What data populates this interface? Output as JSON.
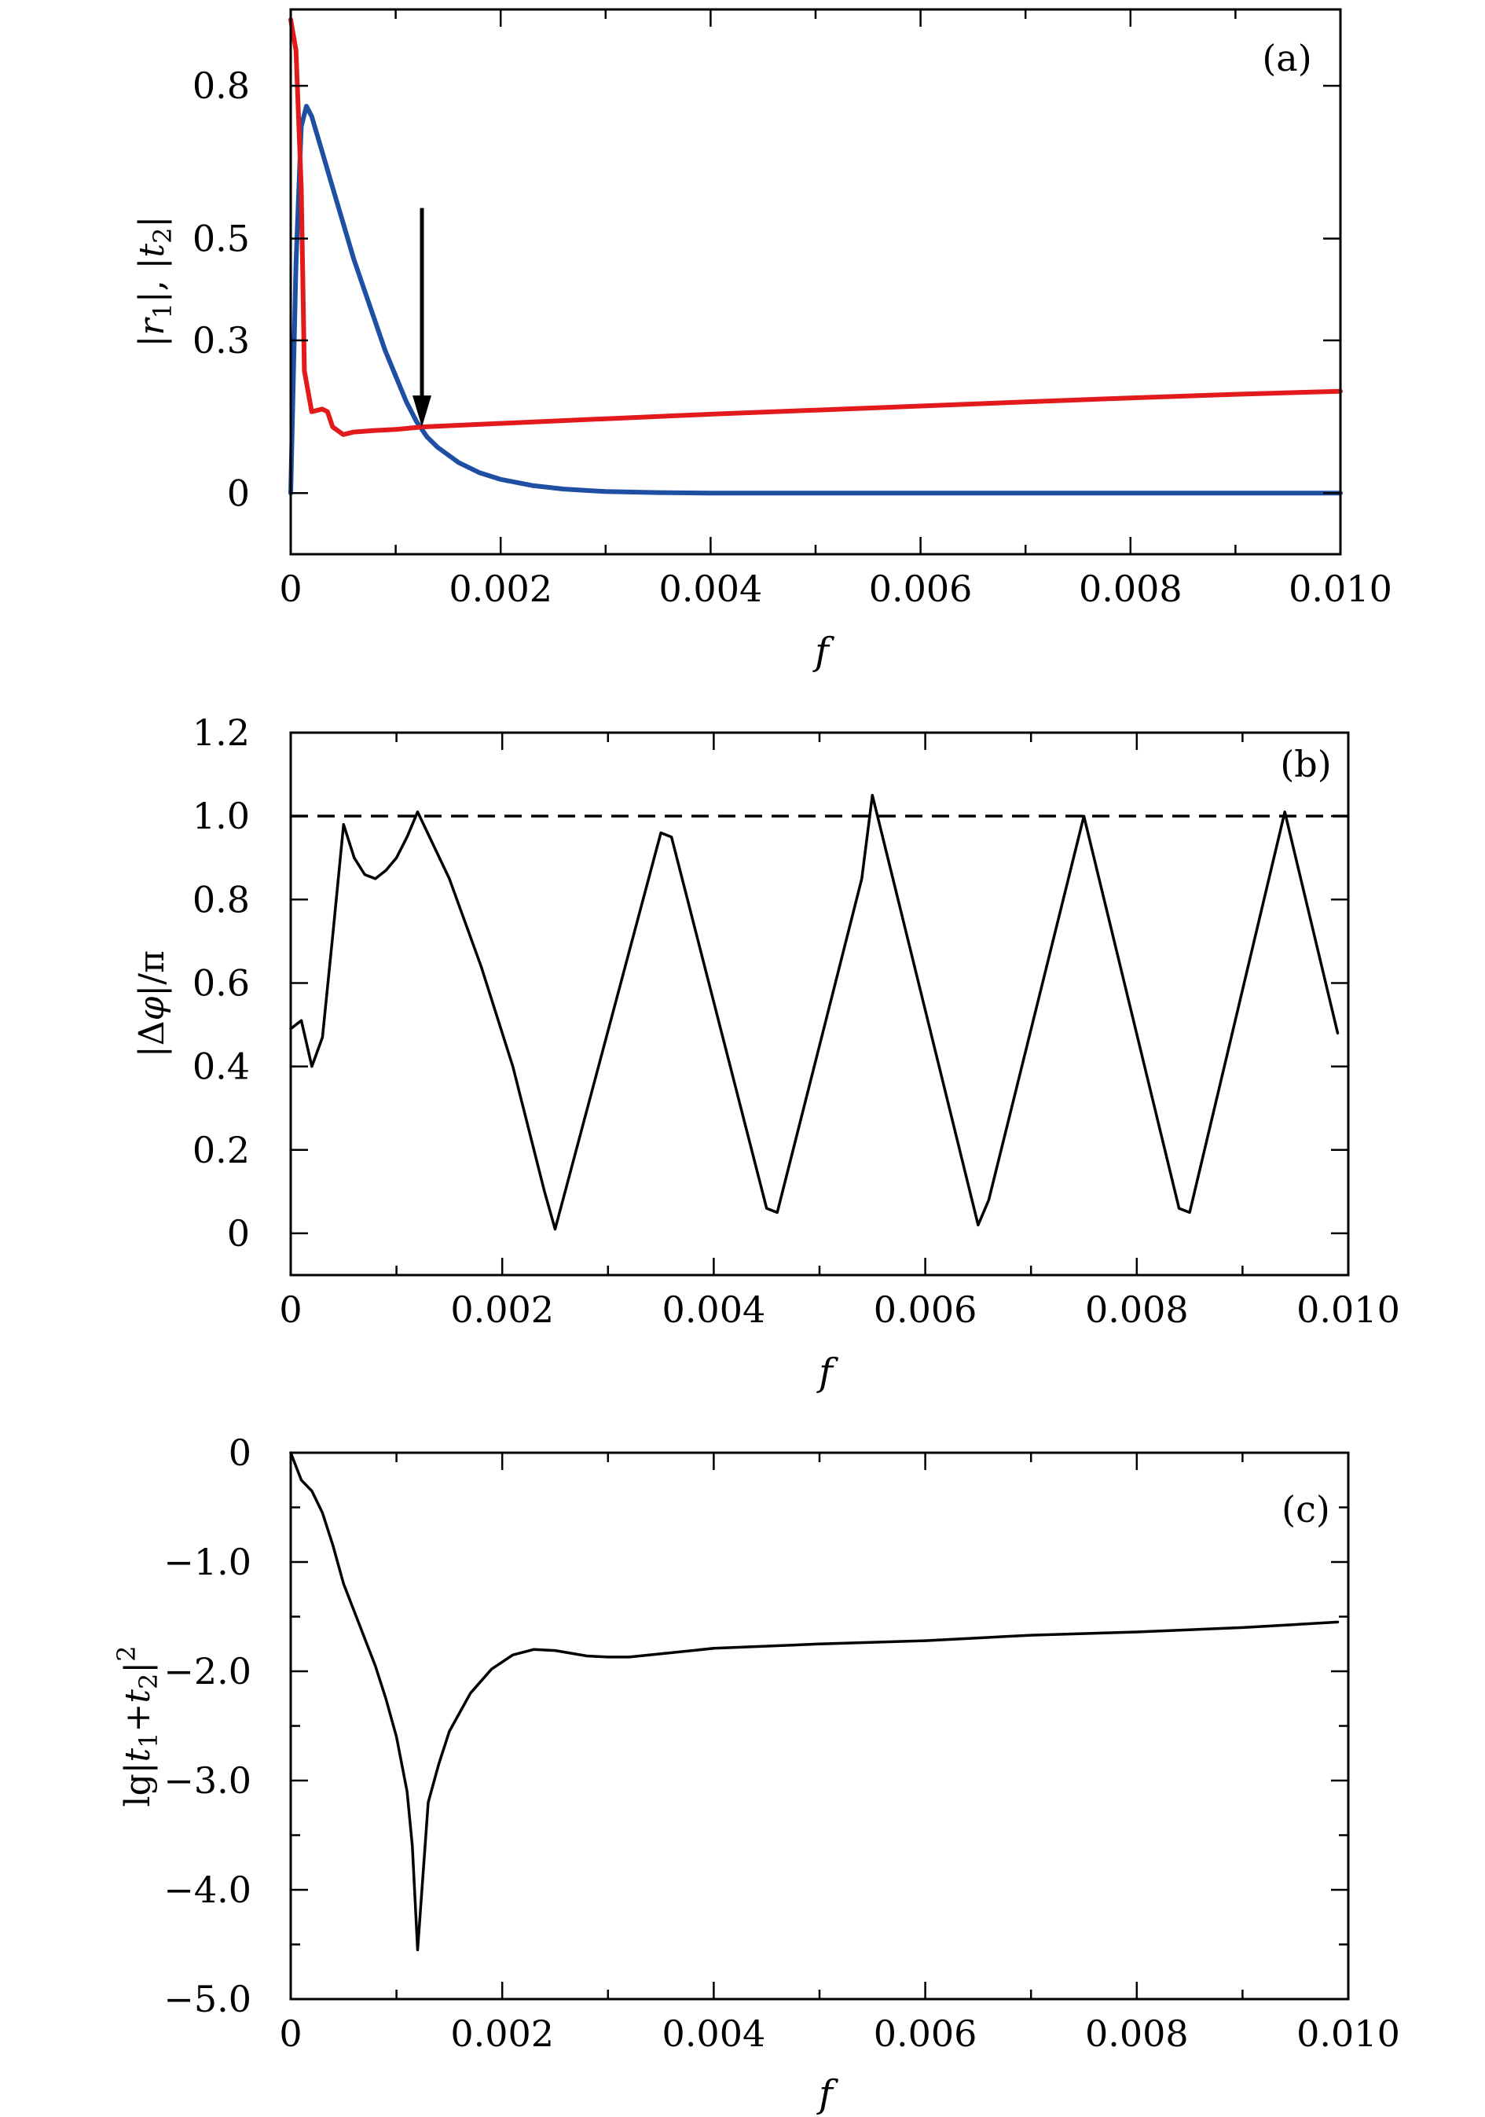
{
  "chart_data": [
    {
      "type": "line",
      "panel_label": "(a)",
      "xlabel": "f",
      "ylabel": "|r1|, |t2|",
      "xlim": [
        0,
        0.01
      ],
      "ylim": [
        -0.12,
        0.95
      ],
      "x_ticks": [
        0,
        0.002,
        0.004,
        0.006,
        0.008,
        0.01
      ],
      "x_tick_labels": [
        "0",
        "0.002",
        "0.004",
        "0.006",
        "0.008",
        "0.010"
      ],
      "y_ticks": [
        0,
        0.3,
        0.5,
        0.8
      ],
      "y_tick_labels": [
        "0",
        "0.3",
        "0.5",
        "0.8"
      ],
      "annotation": {
        "type": "arrow",
        "x": 0.00125,
        "y_from": 0.56,
        "y_to": 0.13
      },
      "series": [
        {
          "color": "#1f4fa3",
          "points": [
            [
              0,
              0
            ],
            [
              5e-05,
              0.45
            ],
            [
              0.0001,
              0.72
            ],
            [
              0.00015,
              0.76
            ],
            [
              0.0002,
              0.74
            ],
            [
              0.0003,
              0.67
            ],
            [
              0.0004,
              0.6
            ],
            [
              0.0005,
              0.53
            ],
            [
              0.0006,
              0.46
            ],
            [
              0.0007,
              0.4
            ],
            [
              0.0008,
              0.34
            ],
            [
              0.0009,
              0.28
            ],
            [
              0.001,
              0.23
            ],
            [
              0.0011,
              0.18
            ],
            [
              0.0012,
              0.14
            ],
            [
              0.0013,
              0.11
            ],
            [
              0.0014,
              0.09
            ],
            [
              0.0016,
              0.06
            ],
            [
              0.0018,
              0.04
            ],
            [
              0.002,
              0.027
            ],
            [
              0.0023,
              0.015
            ],
            [
              0.0026,
              0.008
            ],
            [
              0.003,
              0.003
            ],
            [
              0.0035,
              0.001
            ],
            [
              0.004,
              0
            ],
            [
              0.005,
              0
            ],
            [
              0.006,
              0
            ],
            [
              0.007,
              0
            ],
            [
              0.008,
              0
            ],
            [
              0.009,
              0
            ],
            [
              0.01,
              0
            ]
          ]
        },
        {
          "color": "#e31a1c",
          "points": [
            [
              0,
              0.93
            ],
            [
              5e-05,
              0.87
            ],
            [
              0.0001,
              0.6
            ],
            [
              0.00013,
              0.24
            ],
            [
              0.0002,
              0.16
            ],
            [
              0.0003,
              0.165
            ],
            [
              0.00035,
              0.16
            ],
            [
              0.0004,
              0.13
            ],
            [
              0.0005,
              0.115
            ],
            [
              0.0006,
              0.12
            ],
            [
              0.0008,
              0.123
            ],
            [
              0.001,
              0.125
            ],
            [
              0.00125,
              0.13
            ],
            [
              0.002,
              0.137
            ],
            [
              0.003,
              0.146
            ],
            [
              0.004,
              0.155
            ],
            [
              0.005,
              0.163
            ],
            [
              0.006,
              0.171
            ],
            [
              0.007,
              0.179
            ],
            [
              0.008,
              0.187
            ],
            [
              0.009,
              0.194
            ],
            [
              0.01,
              0.2
            ]
          ]
        }
      ]
    },
    {
      "type": "line",
      "panel_label": "(b)",
      "xlabel": "f",
      "ylabel": "|Δφ|/π",
      "xlim": [
        0,
        0.01
      ],
      "ylim": [
        -0.1,
        1.2
      ],
      "x_ticks": [
        0,
        0.002,
        0.004,
        0.006,
        0.008,
        0.01
      ],
      "x_tick_labels": [
        "0",
        "0.002",
        "0.004",
        "0.006",
        "0.008",
        "0.010"
      ],
      "y_ticks": [
        0,
        0.2,
        0.4,
        0.6,
        0.8,
        1.0,
        1.2
      ],
      "y_tick_labels": [
        "0",
        "0.2",
        "0.4",
        "0.6",
        "0.8",
        "1.0",
        "1.2"
      ],
      "reference_line": {
        "y": 1.0,
        "style": "dashed"
      },
      "series": [
        {
          "color": "#000000",
          "points": [
            [
              0,
              0.49
            ],
            [
              0.0001,
              0.51
            ],
            [
              0.0002,
              0.4
            ],
            [
              0.0003,
              0.47
            ],
            [
              0.0004,
              0.72
            ],
            [
              0.0005,
              0.98
            ],
            [
              0.0006,
              0.9
            ],
            [
              0.0007,
              0.86
            ],
            [
              0.0008,
              0.85
            ],
            [
              0.0009,
              0.87
            ],
            [
              0.001,
              0.9
            ],
            [
              0.0011,
              0.95
            ],
            [
              0.0012,
              1.01
            ],
            [
              0.0015,
              0.85
            ],
            [
              0.0018,
              0.64
            ],
            [
              0.0021,
              0.4
            ],
            [
              0.0024,
              0.1
            ],
            [
              0.0025,
              0.01
            ],
            [
              0.0035,
              0.96
            ],
            [
              0.0036,
              0.95
            ],
            [
              0.0045,
              0.06
            ],
            [
              0.0046,
              0.05
            ],
            [
              0.0054,
              0.85
            ],
            [
              0.0055,
              1.05
            ],
            [
              0.0065,
              0.02
            ],
            [
              0.0066,
              0.08
            ],
            [
              0.0075,
              1.0
            ],
            [
              0.0084,
              0.06
            ],
            [
              0.0085,
              0.05
            ],
            [
              0.0094,
              1.01
            ],
            [
              0.0099,
              0.48
            ]
          ]
        }
      ]
    },
    {
      "type": "line",
      "panel_label": "(c)",
      "xlabel": "f",
      "ylabel": "lg|t1+t2|²",
      "xlim": [
        0,
        0.01
      ],
      "ylim": [
        -5.0,
        0
      ],
      "x_ticks": [
        0,
        0.002,
        0.004,
        0.006,
        0.008,
        0.01
      ],
      "x_tick_labels": [
        "0",
        "0.002",
        "0.004",
        "0.006",
        "0.008",
        "0.010"
      ],
      "y_ticks": [
        0,
        -1.0,
        -2.0,
        -3.0,
        -4.0,
        -5.0
      ],
      "y_tick_labels": [
        "0",
        "−1.0",
        "−2.0",
        "−3.0",
        "−4.0",
        "−5.0"
      ],
      "series": [
        {
          "color": "#000000",
          "points": [
            [
              0,
              0
            ],
            [
              0.0001,
              -0.25
            ],
            [
              0.0002,
              -0.35
            ],
            [
              0.0003,
              -0.55
            ],
            [
              0.0004,
              -0.85
            ],
            [
              0.0005,
              -1.2
            ],
            [
              0.0006,
              -1.45
            ],
            [
              0.0007,
              -1.7
            ],
            [
              0.0008,
              -1.95
            ],
            [
              0.0009,
              -2.25
            ],
            [
              0.001,
              -2.6
            ],
            [
              0.0011,
              -3.1
            ],
            [
              0.00115,
              -3.6
            ],
            [
              0.0012,
              -4.55
            ],
            [
              0.0013,
              -3.2
            ],
            [
              0.0014,
              -2.85
            ],
            [
              0.0015,
              -2.55
            ],
            [
              0.0017,
              -2.2
            ],
            [
              0.0019,
              -1.98
            ],
            [
              0.0021,
              -1.85
            ],
            [
              0.0023,
              -1.8
            ],
            [
              0.0025,
              -1.81
            ],
            [
              0.0028,
              -1.86
            ],
            [
              0.003,
              -1.87
            ],
            [
              0.0032,
              -1.87
            ],
            [
              0.0035,
              -1.84
            ],
            [
              0.004,
              -1.79
            ],
            [
              0.005,
              -1.75
            ],
            [
              0.006,
              -1.72
            ],
            [
              0.007,
              -1.67
            ],
            [
              0.008,
              -1.64
            ],
            [
              0.009,
              -1.6
            ],
            [
              0.0099,
              -1.55
            ]
          ]
        }
      ]
    }
  ]
}
